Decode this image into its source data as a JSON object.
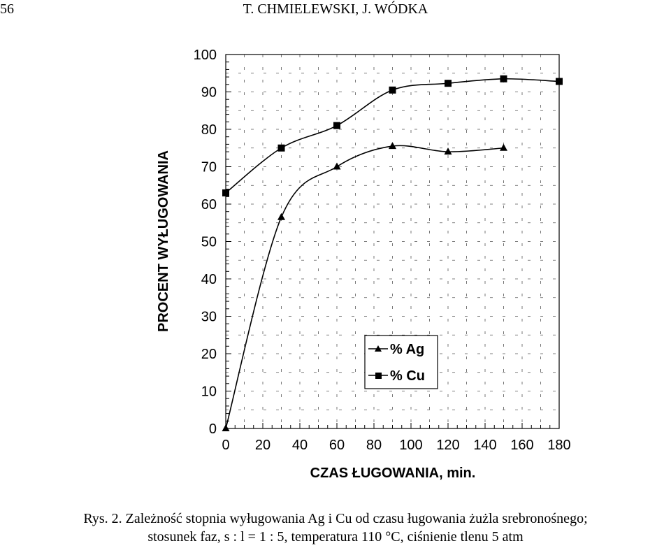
{
  "header": {
    "page_number": "56",
    "running_title": "T. CHMIELEWSKI, J. WÓDKA"
  },
  "chart_data": {
    "type": "line",
    "xlabel": "CZAS ŁUGOWANIA, min.",
    "ylabel": "PROCENT WYŁUGOWANIA",
    "xlim": [
      0,
      180
    ],
    "ylim": [
      0,
      100
    ],
    "x_ticks": [
      "0",
      "20",
      "40",
      "60",
      "80",
      "100",
      "120",
      "140",
      "160",
      "180"
    ],
    "y_ticks": [
      "0",
      "10",
      "20",
      "30",
      "40",
      "50",
      "60",
      "70",
      "80",
      "90",
      "100"
    ],
    "grid": "dashed",
    "legend_position": "lower-right",
    "series": [
      {
        "name": "% Ag",
        "marker": "triangle",
        "x": [
          0,
          30,
          60,
          90,
          120,
          150
        ],
        "y": [
          0,
          56.5,
          70,
          75.5,
          74,
          75
        ]
      },
      {
        "name": "% Cu",
        "marker": "square",
        "x": [
          0,
          30,
          60,
          90,
          120,
          150,
          180
        ],
        "y": [
          63,
          75,
          81,
          90.5,
          92.3,
          93.5,
          92.8
        ]
      }
    ]
  },
  "caption": {
    "line1": "Rys. 2. Zależność stopnia wyługowania Ag i Cu od czasu ługowania żużla srebronośnego;",
    "line2": "stosunek faz, s : l = 1 : 5, temperatura  110 °C, ciśnienie tlenu 5 atm"
  }
}
